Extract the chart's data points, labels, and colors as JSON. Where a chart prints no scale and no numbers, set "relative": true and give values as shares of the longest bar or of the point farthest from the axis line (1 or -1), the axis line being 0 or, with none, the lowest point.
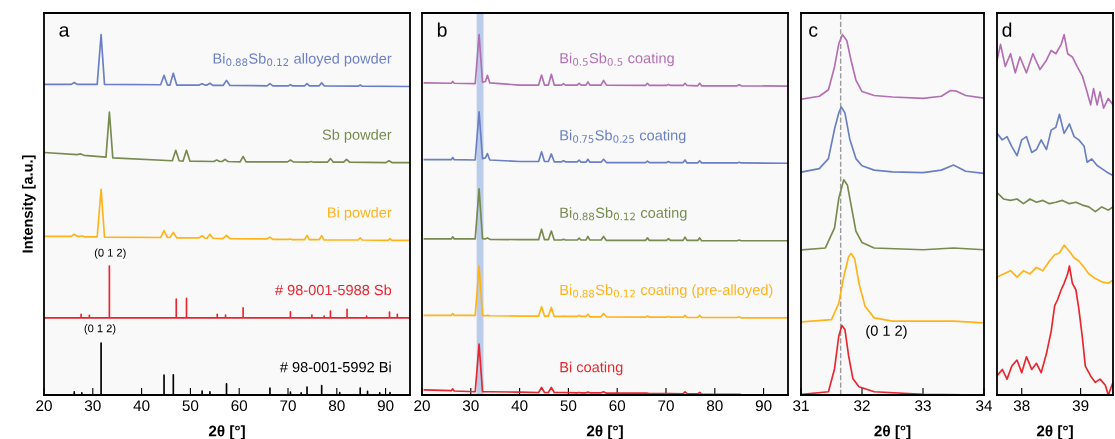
{
  "chart_data": [
    {
      "type": "line",
      "title": "a",
      "xlabel": "2θ [°]",
      "ylabel": "Intensity [a.u.]",
      "relative": true,
      "tick_labels": "x",
      "legend": false,
      "grid": false,
      "xlim": [
        20,
        95
      ],
      "xticks": [
        20,
        30,
        40,
        50,
        60,
        70,
        80,
        90
      ],
      "annotations": [
        "(0 1 2)",
        "(0 1 2)"
      ],
      "series": [
        {
          "name": "Bi$_{0.88}$Sb$_{0.12}$ alloyed powder",
          "color": "#6b7fc4",
          "x": [
            20,
            25.6,
            26.2,
            26.8,
            30.9,
            31.7,
            32.4,
            43.9,
            44.6,
            45.3,
            45.8,
            46.5,
            47.2,
            51.8,
            52.4,
            53.0,
            53.4,
            54.0,
            54.6,
            56.7,
            57.4,
            58.1,
            65.7,
            66.3,
            66.9,
            70.1,
            70.5,
            70.9,
            73.4,
            73.9,
            74.4,
            76.4,
            76.9,
            77.4,
            84.4,
            84.8,
            85.2,
            95
          ],
          "values": [
            0.862,
            0.862,
            0.867,
            0.862,
            0.862,
            1.0,
            0.862,
            0.861,
            0.887,
            0.86,
            0.86,
            0.893,
            0.86,
            0.86,
            0.864,
            0.86,
            0.86,
            0.865,
            0.859,
            0.859,
            0.873,
            0.859,
            0.858,
            0.864,
            0.858,
            0.858,
            0.861,
            0.858,
            0.858,
            0.864,
            0.858,
            0.858,
            0.866,
            0.858,
            0.857,
            0.86,
            0.857,
            0.856
          ]
        },
        {
          "name": "Sb powder",
          "color": "#778a4f",
          "x": [
            20,
            26.8,
            27.5,
            28.2,
            32.7,
            33.4,
            34.1,
            46.3,
            47.0,
            47.7,
            48.5,
            49.2,
            49.9,
            54.8,
            55.4,
            56.0,
            56.5,
            57.1,
            57.7,
            60.2,
            60.8,
            61.4,
            69.9,
            70.5,
            71.1,
            74.1,
            74.7,
            75.3,
            78.1,
            78.7,
            79.3,
            81.4,
            82.0,
            82.6,
            90.1,
            90.7,
            91.3,
            95
          ],
          "values": [
            0.673,
            0.667,
            0.669,
            0.665,
            0.66,
            0.785,
            0.658,
            0.65,
            0.679,
            0.65,
            0.649,
            0.679,
            0.649,
            0.648,
            0.652,
            0.648,
            0.648,
            0.654,
            0.648,
            0.647,
            0.662,
            0.647,
            0.647,
            0.652,
            0.647,
            0.646,
            0.648,
            0.646,
            0.646,
            0.656,
            0.646,
            0.646,
            0.654,
            0.646,
            0.645,
            0.65,
            0.645,
            0.645
          ]
        },
        {
          "name": "Bi powder",
          "color": "#ffb31a",
          "x": [
            20,
            25.6,
            26.2,
            26.8,
            27.2,
            27.75,
            28.3,
            30.9,
            31.7,
            32.4,
            43.9,
            44.6,
            45.3,
            45.8,
            46.5,
            47.2,
            51.8,
            52.4,
            53.0,
            53.4,
            54.0,
            54.6,
            56.7,
            57.4,
            58.1,
            65.7,
            66.3,
            66.9,
            70.1,
            70.5,
            70.9,
            73.4,
            73.9,
            74.4,
            76.4,
            76.9,
            77.4,
            84.4,
            84.8,
            85.2,
            90.5,
            90.9,
            91.3,
            95
          ],
          "values": [
            0.44,
            0.44,
            0.446,
            0.44,
            0.44,
            0.442,
            0.439,
            0.439,
            0.571,
            0.438,
            0.437,
            0.456,
            0.437,
            0.437,
            0.451,
            0.436,
            0.436,
            0.442,
            0.435,
            0.435,
            0.446,
            0.435,
            0.434,
            0.443,
            0.434,
            0.433,
            0.438,
            0.432,
            0.432,
            0.433,
            0.431,
            0.431,
            0.443,
            0.431,
            0.431,
            0.442,
            0.43,
            0.43,
            0.436,
            0.43,
            0.429,
            0.434,
            0.429,
            0.429
          ]
        },
        {
          "name": "# 98-001-5988 Sb",
          "color": "#e8262f",
          "x": [
            20,
            27.6,
            27.6,
            27.6,
            29.3,
            29.3,
            29.3,
            33.4,
            33.4,
            33.4,
            47.1,
            47.1,
            47.1,
            49.2,
            49.2,
            49.2,
            55.5,
            55.5,
            55.5,
            57.2,
            57.2,
            57.2,
            60.8,
            60.8,
            60.8,
            70.5,
            70.5,
            70.5,
            74.9,
            74.9,
            74.9,
            77.4,
            77.4,
            77.4,
            78.7,
            78.7,
            78.7,
            82.1,
            82.1,
            82.1,
            86.1,
            86.1,
            86.1,
            90.8,
            90.8,
            90.8,
            92.4,
            92.4,
            92.4,
            95
          ],
          "values": [
            0.214,
            0.214,
            0.224,
            0.214,
            0.214,
            0.221,
            0.214,
            0.214,
            0.358,
            0.214,
            0.214,
            0.266,
            0.214,
            0.214,
            0.268,
            0.214,
            0.214,
            0.224,
            0.214,
            0.214,
            0.222,
            0.214,
            0.214,
            0.242,
            0.214,
            0.214,
            0.231,
            0.214,
            0.214,
            0.222,
            0.214,
            0.214,
            0.219,
            0.214,
            0.214,
            0.233,
            0.214,
            0.214,
            0.238,
            0.214,
            0.214,
            0.219,
            0.214,
            0.214,
            0.23,
            0.214,
            0.214,
            0.224,
            0.214,
            0.214
          ]
        },
        {
          "name": "# 98-001-5992 Bi",
          "color": "#000000",
          "x": [
            20,
            26.2,
            26.2,
            26.2,
            27.75,
            27.75,
            27.75,
            31.7,
            31.7,
            31.7,
            44.6,
            44.6,
            44.6,
            46.5,
            46.5,
            46.5,
            52.4,
            52.4,
            52.4,
            54.0,
            54.0,
            54.0,
            57.4,
            57.4,
            57.4,
            66.3,
            66.3,
            66.3,
            70.5,
            70.5,
            70.5,
            72.7,
            72.7,
            72.7,
            73.9,
            73.9,
            73.9,
            76.9,
            76.9,
            76.9,
            80.6,
            80.6,
            80.6,
            84.8,
            84.8,
            84.8,
            86.3,
            86.3,
            86.3,
            88.8,
            88.8,
            88.8,
            90.9,
            90.9,
            90.9,
            95
          ],
          "values": [
            0,
            0,
            0.009,
            0,
            0,
            0.006,
            0,
            0,
            0.144,
            0,
            0,
            0.055,
            0,
            0,
            0.056,
            0,
            0,
            0.011,
            0,
            0,
            0.009,
            0,
            0,
            0.031,
            0,
            0,
            0.019,
            0,
            0,
            0.008,
            0,
            0,
            0.006,
            0,
            0,
            0.022,
            0,
            0,
            0.026,
            0,
            0,
            0.007,
            0,
            0,
            0.019,
            0,
            0,
            0.01,
            0,
            0,
            0.006,
            0,
            0,
            0.007,
            0,
            0
          ]
        }
      ]
    },
    {
      "type": "line",
      "title": "b",
      "xlabel": "2θ [°]",
      "relative": true,
      "tick_labels": "x",
      "legend": false,
      "grid": false,
      "xlim": [
        20,
        95
      ],
      "xticks": [
        20,
        30,
        40,
        50,
        60,
        70,
        80,
        90
      ],
      "bands": [
        {
          "axis": "x",
          "from": 31.2,
          "to": 32.6,
          "color": "#b4c8e8"
        }
      ],
      "x": [
        20.5,
        26.0,
        26.3,
        26.6,
        30.9,
        31.7,
        32.4,
        33.0,
        33.4,
        33.9,
        40,
        43.9,
        44.5,
        45.1,
        45.9,
        46.5,
        47.1,
        48.6,
        49.0,
        49.4,
        51.8,
        52.2,
        52.6,
        53.6,
        54.0,
        54.4,
        56.7,
        57.2,
        57.8,
        65.8,
        66.2,
        66.6,
        70.1,
        70.5,
        70.9,
        73.5,
        73.9,
        74.3,
        76.5,
        76.9,
        77.3,
        84.6,
        85.0,
        85.4,
        95
      ],
      "series": [
        {
          "name": "Bi$_{0.5}$Sb$_{0.5}$ coating",
          "color": "#b36fb3",
          "values": [
            0.866,
            0.865,
            0.87,
            0.865,
            0.864,
            1.0,
            0.868,
            0.87,
            0.887,
            0.866,
            0.86,
            0.86,
            0.888,
            0.86,
            0.86,
            0.89,
            0.86,
            0.86,
            0.864,
            0.86,
            0.86,
            0.865,
            0.86,
            0.86,
            0.869,
            0.86,
            0.86,
            0.873,
            0.86,
            0.859,
            0.865,
            0.859,
            0.859,
            0.862,
            0.859,
            0.859,
            0.865,
            0.859,
            0.858,
            0.865,
            0.858,
            0.858,
            0.861,
            0.858,
            0.857
          ]
        },
        {
          "name": "Bi$_{0.75}$Sb$_{0.25}$ coating",
          "color": "#6b7fc4",
          "values": [
            0.653,
            0.653,
            0.659,
            0.653,
            0.652,
            0.786,
            0.656,
            0.658,
            0.67,
            0.652,
            0.648,
            0.648,
            0.675,
            0.648,
            0.648,
            0.669,
            0.647,
            0.647,
            0.65,
            0.647,
            0.647,
            0.652,
            0.646,
            0.646,
            0.654,
            0.646,
            0.646,
            0.654,
            0.645,
            0.645,
            0.649,
            0.645,
            0.645,
            0.648,
            0.645,
            0.645,
            0.652,
            0.644,
            0.644,
            0.65,
            0.644,
            0.644,
            0.646,
            0.644,
            0.643
          ]
        },
        {
          "name": "Bi$_{0.88}$Sb$_{0.12}$ coating",
          "color": "#778a4f",
          "values": [
            0.433,
            0.433,
            0.439,
            0.433,
            0.433,
            0.572,
            0.434,
            0.433,
            0.436,
            0.432,
            0.431,
            0.431,
            0.46,
            0.431,
            0.431,
            0.455,
            0.43,
            0.43,
            0.432,
            0.43,
            0.43,
            0.435,
            0.43,
            0.43,
            0.44,
            0.43,
            0.43,
            0.44,
            0.429,
            0.429,
            0.436,
            0.429,
            0.429,
            0.434,
            0.429,
            0.429,
            0.438,
            0.429,
            0.429,
            0.436,
            0.428,
            0.428,
            0.43,
            0.428,
            0.428
          ]
        },
        {
          "name": "Bi$_{0.88}$Sb$_{0.12}$ coating (pre-alloyed)",
          "color": "#ffb31a",
          "values": [
            0.221,
            0.221,
            0.226,
            0.221,
            0.221,
            0.358,
            0.221,
            0.22,
            0.221,
            0.22,
            0.219,
            0.219,
            0.245,
            0.219,
            0.219,
            0.243,
            0.218,
            0.218,
            0.219,
            0.218,
            0.218,
            0.221,
            0.218,
            0.218,
            0.224,
            0.217,
            0.217,
            0.226,
            0.217,
            0.216,
            0.219,
            0.216,
            0.216,
            0.218,
            0.216,
            0.216,
            0.221,
            0.215,
            0.215,
            0.221,
            0.215,
            0.215,
            0.217,
            0.214,
            0.214
          ]
        },
        {
          "name": "Bi coating",
          "color": "#e8262f",
          "values": [
            0.014,
            0.012,
            0.017,
            0.011,
            0.009,
            0.141,
            0.009,
            0.009,
            0.009,
            0.009,
            0.008,
            0.007,
            0.021,
            0.007,
            0.007,
            0.021,
            0.007,
            0.007,
            0.007,
            0.007,
            0.006,
            0.007,
            0.006,
            0.006,
            0.008,
            0.006,
            0.006,
            0.009,
            0.005,
            0.005,
            0.005,
            0.004,
            0.004,
            0.004,
            0.004,
            0.003,
            0.009,
            0.003,
            0.003,
            0.007,
            0.002,
            0.002,
            0.002,
            0.001,
            0.0
          ]
        }
      ]
    },
    {
      "type": "line",
      "title": "c",
      "xlabel": "2θ [°]",
      "relative": true,
      "tick_labels": "x",
      "legend": false,
      "grid": false,
      "xlim": [
        31,
        34
      ],
      "xticks": [
        31,
        32,
        33,
        34
      ],
      "ref_lines": [
        {
          "axis": "x",
          "value": 31.65,
          "color": "#9a9a9a",
          "line_style": "dashed"
        }
      ],
      "annotations": [
        "(0 1 2)"
      ],
      "series": [
        {
          "color": "#b36fb3",
          "x": [
            31.02,
            31.3,
            31.45,
            31.55,
            31.62,
            31.68,
            31.75,
            31.82,
            31.9,
            32.0,
            32.2,
            32.5,
            33.0,
            33.3,
            33.45,
            33.55,
            33.7,
            34.0
          ],
          "values": [
            0.821,
            0.829,
            0.847,
            0.911,
            0.975,
            1.0,
            0.984,
            0.929,
            0.874,
            0.842,
            0.831,
            0.827,
            0.823,
            0.829,
            0.845,
            0.843,
            0.831,
            0.824
          ]
        },
        {
          "color": "#6b7fc4",
          "x": [
            31.02,
            31.3,
            31.45,
            31.55,
            31.62,
            31.66,
            31.72,
            31.8,
            31.9,
            32.0,
            32.2,
            32.5,
            33.0,
            33.3,
            33.5,
            33.7,
            34.0
          ],
          "values": [
            0.619,
            0.628,
            0.656,
            0.738,
            0.783,
            0.799,
            0.783,
            0.71,
            0.656,
            0.636,
            0.624,
            0.619,
            0.617,
            0.624,
            0.638,
            0.621,
            0.615
          ]
        },
        {
          "color": "#778a4f",
          "x": [
            31.02,
            31.4,
            31.55,
            31.62,
            31.7,
            31.76,
            31.82,
            31.9,
            32.0,
            32.2,
            33.0,
            33.5,
            34.0
          ],
          "values": [
            0.403,
            0.408,
            0.464,
            0.546,
            0.597,
            0.583,
            0.528,
            0.455,
            0.423,
            0.408,
            0.403,
            0.408,
            0.403
          ]
        },
        {
          "color": "#ffb31a",
          "x": [
            31.02,
            31.5,
            31.62,
            31.7,
            31.78,
            31.82,
            31.88,
            31.95,
            32.05,
            32.2,
            32.5,
            33.5,
            34.0
          ],
          "values": [
            0.203,
            0.209,
            0.255,
            0.328,
            0.383,
            0.393,
            0.378,
            0.31,
            0.246,
            0.214,
            0.205,
            0.205,
            0.2
          ]
        },
        {
          "color": "#e8262f",
          "x": [
            31.02,
            31.45,
            31.55,
            31.62,
            31.67,
            31.72,
            31.78,
            31.85,
            31.95,
            32.2,
            33.0,
            34.0
          ],
          "values": [
            0.002,
            0.009,
            0.073,
            0.164,
            0.193,
            0.182,
            0.109,
            0.046,
            0.023,
            0.009,
            0.002,
            0.0
          ]
        }
      ]
    },
    {
      "type": "line",
      "title": "d",
      "xlabel": "2θ [°]",
      "relative": true,
      "tick_labels": "x",
      "legend": false,
      "grid": false,
      "xlim": [
        37.58,
        39.55
      ],
      "xticks": [
        38,
        39
      ],
      "series": [
        {
          "color": "#b36fb3",
          "x": [
            37.58,
            37.64,
            37.72,
            37.81,
            37.89,
            37.97,
            38.08,
            38.19,
            38.31,
            38.42,
            38.5,
            38.58,
            38.67,
            38.72,
            38.78,
            38.86,
            38.94,
            39.03,
            39.11,
            39.17,
            39.22,
            39.28,
            39.33,
            39.39,
            39.47,
            39.55
          ],
          "values": [
            0.929,
            0.973,
            0.912,
            0.947,
            0.894,
            0.938,
            0.894,
            0.947,
            0.903,
            0.929,
            0.956,
            0.947,
            0.973,
            1.0,
            0.947,
            0.938,
            0.912,
            0.885,
            0.841,
            0.805,
            0.85,
            0.805,
            0.841,
            0.796,
            0.823,
            0.805
          ]
        },
        {
          "color": "#6b7fc4",
          "x": [
            37.58,
            37.67,
            37.75,
            37.83,
            37.92,
            38.0,
            38.08,
            38.17,
            38.25,
            38.33,
            38.42,
            38.5,
            38.58,
            38.64,
            38.72,
            38.81,
            38.89,
            38.97,
            39.06,
            39.11,
            39.19,
            39.28,
            39.36,
            39.44,
            39.53
          ],
          "values": [
            0.726,
            0.708,
            0.717,
            0.69,
            0.664,
            0.708,
            0.717,
            0.673,
            0.681,
            0.708,
            0.681,
            0.735,
            0.743,
            0.779,
            0.726,
            0.752,
            0.717,
            0.708,
            0.69,
            0.646,
            0.655,
            0.637,
            0.628,
            0.619,
            0.611
          ]
        },
        {
          "color": "#778a4f",
          "x": [
            37.58,
            37.69,
            37.81,
            37.92,
            38.03,
            38.14,
            38.25,
            38.36,
            38.47,
            38.58,
            38.69,
            38.81,
            38.92,
            39.03,
            39.14,
            39.25,
            39.36,
            39.47,
            39.55
          ],
          "values": [
            0.562,
            0.544,
            0.54,
            0.544,
            0.531,
            0.544,
            0.535,
            0.54,
            0.531,
            0.535,
            0.54,
            0.531,
            0.535,
            0.527,
            0.522,
            0.509,
            0.522,
            0.513,
            0.522
          ]
        },
        {
          "color": "#ffb31a",
          "x": [
            37.58,
            37.69,
            37.81,
            37.92,
            38.03,
            38.14,
            38.25,
            38.36,
            38.47,
            38.56,
            38.64,
            38.72,
            38.81,
            38.89,
            38.97,
            39.06,
            39.14,
            39.25,
            39.36,
            39.47,
            39.55
          ],
          "values": [
            0.327,
            0.336,
            0.345,
            0.327,
            0.345,
            0.336,
            0.354,
            0.345,
            0.372,
            0.389,
            0.394,
            0.416,
            0.398,
            0.381,
            0.372,
            0.354,
            0.336,
            0.323,
            0.314,
            0.31,
            0.319
          ]
        },
        {
          "color": "#e8262f",
          "x": [
            37.58,
            37.67,
            37.75,
            37.83,
            37.92,
            38.0,
            38.08,
            38.17,
            38.25,
            38.33,
            38.42,
            38.5,
            38.56,
            38.61,
            38.67,
            38.72,
            38.78,
            38.81,
            38.86,
            38.92,
            38.97,
            39.03,
            39.08,
            39.17,
            39.25,
            39.33,
            39.42,
            39.47,
            39.55
          ],
          "values": [
            0.053,
            0.071,
            0.044,
            0.08,
            0.097,
            0.062,
            0.106,
            0.071,
            0.088,
            0.062,
            0.115,
            0.177,
            0.248,
            0.265,
            0.292,
            0.31,
            0.336,
            0.358,
            0.31,
            0.292,
            0.239,
            0.159,
            0.08,
            0.053,
            0.035,
            0.044,
            0.027,
            0.0,
            0.035
          ]
        }
      ]
    }
  ]
}
